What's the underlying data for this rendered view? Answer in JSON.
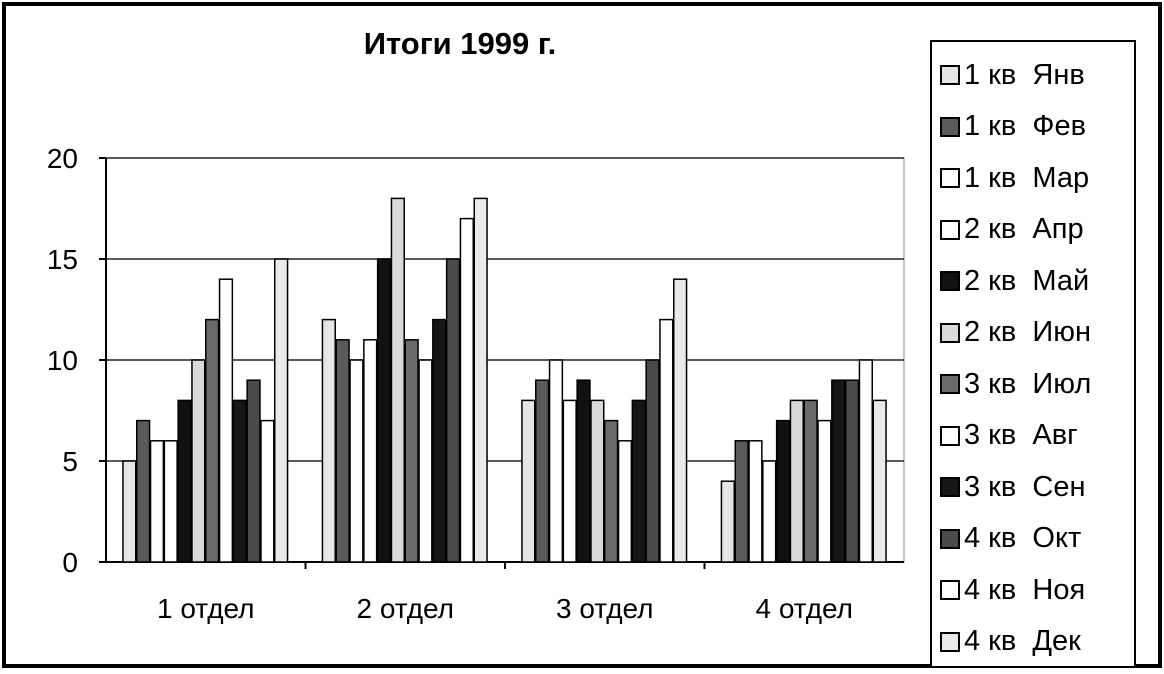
{
  "chart_data": {
    "type": "bar",
    "title": "Итоги 1999 г.",
    "categories": [
      "1 отдел",
      "2 отдел",
      "3 отдел",
      "4 отдел"
    ],
    "ylim": [
      0,
      20
    ],
    "yticks": [
      "0",
      "5",
      "10",
      "15",
      "20"
    ],
    "grid": true,
    "legend_position": "right",
    "series": [
      {
        "name": "1 кв  Янв",
        "color": "#e6e6e6",
        "values": [
          5,
          12,
          8,
          4
        ]
      },
      {
        "name": "1 кв  Фев",
        "color": "#5a5a5a",
        "values": [
          7,
          11,
          9,
          6
        ]
      },
      {
        "name": "1 кв  Мар",
        "color": "#ffffff",
        "values": [
          6,
          10,
          10,
          6
        ]
      },
      {
        "name": "2 кв  Апр",
        "color": "#ffffff",
        "values": [
          6,
          11,
          8,
          5
        ]
      },
      {
        "name": "2 кв  Май",
        "color": "#111111",
        "values": [
          8,
          15,
          9,
          7
        ]
      },
      {
        "name": "2 кв  Июн",
        "color": "#d9d9d9",
        "values": [
          10,
          18,
          8,
          8
        ]
      },
      {
        "name": "3 кв  Июл",
        "color": "#6a6a6a",
        "values": [
          12,
          11,
          7,
          8
        ]
      },
      {
        "name": "3 кв  Авг",
        "color": "#ffffff",
        "values": [
          14,
          10,
          6,
          7
        ]
      },
      {
        "name": "3 кв  Сен",
        "color": "#161616",
        "values": [
          8,
          12,
          8,
          9
        ]
      },
      {
        "name": "4 кв  Окт",
        "color": "#4a4a4a",
        "values": [
          9,
          15,
          10,
          9
        ]
      },
      {
        "name": "4 кв  Ноя",
        "color": "#ffffff",
        "values": [
          7,
          17,
          12,
          10
        ]
      },
      {
        "name": "4 кв  Дек",
        "color": "#eaeaea",
        "values": [
          15,
          18,
          14,
          8
        ]
      }
    ]
  }
}
